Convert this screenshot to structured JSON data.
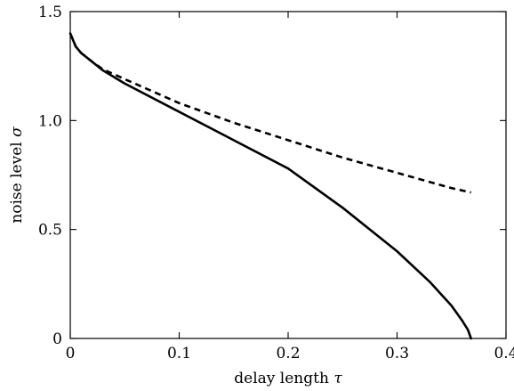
{
  "chart_data": {
    "type": "line",
    "xlabel": "delay length",
    "xlabel_symbol": "τ",
    "ylabel": "noise level",
    "ylabel_symbol": "σ",
    "xlim": [
      0,
      0.4
    ],
    "ylim": [
      0,
      1.5
    ],
    "grid": false,
    "x_ticks": [
      0,
      0.1,
      0.2,
      0.3,
      0.4
    ],
    "x_tick_labels": [
      "0",
      "0.1",
      "0.2",
      "0.3",
      "0.4"
    ],
    "y_ticks": [
      0,
      0.5,
      1.0,
      1.5
    ],
    "y_tick_labels": [
      "0",
      "0.5",
      "1.0",
      "1.5"
    ],
    "series": [
      {
        "style": "solid",
        "color": "#000000",
        "x": [
          0,
          0.005,
          0.01,
          0.02,
          0.03,
          0.05,
          0.1,
          0.15,
          0.2,
          0.25,
          0.3,
          0.33,
          0.35,
          0.36,
          0.365,
          0.3679
        ],
        "y": [
          1.4,
          1.34,
          1.31,
          1.27,
          1.23,
          1.17,
          1.04,
          0.91,
          0.78,
          0.6,
          0.4,
          0.26,
          0.15,
          0.08,
          0.04,
          0.0
        ]
      },
      {
        "style": "dashed",
        "color": "#000000",
        "x": [
          0,
          0.005,
          0.01,
          0.02,
          0.03,
          0.05,
          0.1,
          0.15,
          0.2,
          0.25,
          0.3,
          0.35,
          0.3679
        ],
        "y": [
          1.4,
          1.34,
          1.31,
          1.27,
          1.235,
          1.19,
          1.08,
          0.99,
          0.91,
          0.83,
          0.76,
          0.69,
          0.67
        ]
      }
    ]
  }
}
